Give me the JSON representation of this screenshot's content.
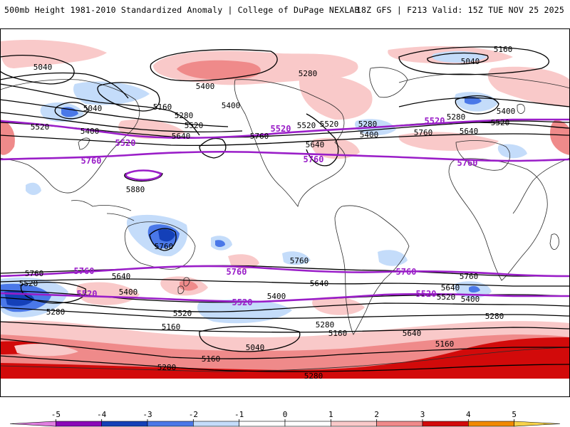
{
  "header": {
    "title": "500mb Height 1981-2010 Standardized Anomaly | College of DuPage NEXLAB",
    "run_info": "18Z GFS | F213 Valid: 15Z TUE NOV 25 2025"
  },
  "colors": {
    "neg5": "#e07ee0",
    "neg4": "#8a08b8",
    "neg3": "#1440b8",
    "neg2": "#4a78e8",
    "neg1": "#c4dcfa",
    "zero": "#ffffff",
    "pos1": "#f9c9c9",
    "pos2": "#ef8a8a",
    "pos3": "#d20a0a",
    "pos4": "#f08a00",
    "pos5": "#f7d24a",
    "contour": "#000000",
    "highlight_contour": "#9a1ec8",
    "coastline": "#2a2a2a"
  },
  "contour_labels": [
    {
      "id": "c5040-nw",
      "text": "5040"
    },
    {
      "id": "c5040-ne",
      "text": "5040"
    },
    {
      "id": "c5160-ne",
      "text": "5160"
    },
    {
      "id": "c5280-nc",
      "text": "5280"
    },
    {
      "id": "c5400-nc",
      "text": "5400"
    },
    {
      "id": "c5400-nc2",
      "text": "5400"
    },
    {
      "id": "c5040-w",
      "text": "5040"
    },
    {
      "id": "c5160-w",
      "text": "5160"
    },
    {
      "id": "c5280-w",
      "text": "5280"
    },
    {
      "id": "c5520-w",
      "text": "5520"
    },
    {
      "id": "c5400-w",
      "text": "5400"
    },
    {
      "id": "c5520-c",
      "text": "5520"
    },
    {
      "id": "c5640-c",
      "text": "5640"
    },
    {
      "id": "c5760-c",
      "text": "5760"
    },
    {
      "id": "c5520-c2",
      "text": "5520"
    },
    {
      "id": "c5280-c",
      "text": "5280"
    },
    {
      "id": "c5400-c",
      "text": "5400"
    },
    {
      "id": "c5640-c2",
      "text": "5640"
    },
    {
      "id": "c5520-e",
      "text": "5520"
    },
    {
      "id": "c5280-e",
      "text": "5280"
    },
    {
      "id": "c5400-e",
      "text": "5400"
    },
    {
      "id": "c5760-e",
      "text": "5760"
    },
    {
      "id": "c5640-e",
      "text": "5640"
    },
    {
      "id": "c5520-e2",
      "text": "5520"
    },
    {
      "id": "c5880-w",
      "text": "5880"
    },
    {
      "id": "c5760-sw",
      "text": "5760"
    },
    {
      "id": "c5760-s",
      "text": "5760"
    },
    {
      "id": "c5760-s2",
      "text": "5760"
    },
    {
      "id": "c5640-s",
      "text": "5640"
    },
    {
      "id": "c5520-s",
      "text": "5520"
    },
    {
      "id": "c5400-s",
      "text": "5400"
    },
    {
      "id": "c5280-s",
      "text": "5280"
    },
    {
      "id": "c5520-s2",
      "text": "5520"
    },
    {
      "id": "c5160-s",
      "text": "5160"
    },
    {
      "id": "c5640-s2",
      "text": "5640"
    },
    {
      "id": "c5400-s2",
      "text": "5400"
    },
    {
      "id": "c5280-s2",
      "text": "5280"
    },
    {
      "id": "c5160-s2",
      "text": "5160"
    },
    {
      "id": "c5040-s",
      "text": "5040"
    },
    {
      "id": "c5160-s3",
      "text": "5160"
    },
    {
      "id": "c5280-s3",
      "text": "5280"
    },
    {
      "id": "c5280-s4",
      "text": "5280"
    },
    {
      "id": "c5760-se",
      "text": "5760"
    },
    {
      "id": "c5640-se",
      "text": "5640"
    },
    {
      "id": "c5400-se",
      "text": "5400"
    },
    {
      "id": "c5520-se",
      "text": "5520"
    },
    {
      "id": "c5280-se",
      "text": "5280"
    },
    {
      "id": "c5160-se",
      "text": "5160"
    },
    {
      "id": "c5640-se2",
      "text": "5640"
    },
    {
      "id": "c5400-sw",
      "text": "5400"
    },
    {
      "id": "c5640-sw",
      "text": "5640"
    },
    {
      "id": "c5520-sw",
      "text": "5520"
    }
  ],
  "highlight_labels": [
    {
      "id": "h5520-w",
      "text": "5520"
    },
    {
      "id": "h5520-c",
      "text": "5520"
    },
    {
      "id": "h5520-e",
      "text": "5520"
    },
    {
      "id": "h5760-w",
      "text": "5760"
    },
    {
      "id": "h5760-c",
      "text": "5760"
    },
    {
      "id": "h5760-e",
      "text": "5760"
    },
    {
      "id": "h5760-sw",
      "text": "5760"
    },
    {
      "id": "h5760-sc",
      "text": "5760"
    },
    {
      "id": "h5760-se",
      "text": "5760"
    },
    {
      "id": "h5520-sw",
      "text": "5520"
    },
    {
      "id": "h5520-sc",
      "text": "5520"
    },
    {
      "id": "h5520-se",
      "text": "5520"
    }
  ],
  "colorbar": {
    "ticks": [
      "-5",
      "-4",
      "-3",
      "-2",
      "-1",
      "0",
      "1",
      "2",
      "3",
      "4",
      "5"
    ],
    "min": -6,
    "max": 6
  }
}
